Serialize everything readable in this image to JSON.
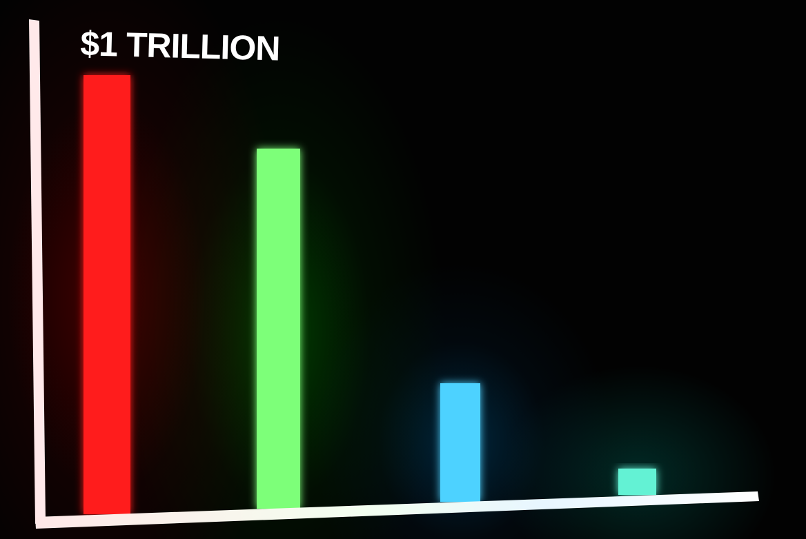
{
  "chart_data": {
    "type": "bar",
    "title": "$1 TRILLION",
    "categories": [
      "",
      "",
      "",
      ""
    ],
    "values": [
      1.0,
      0.82,
      0.27,
      0.06
    ],
    "colors": [
      "#ff1a1a",
      "#7dff79",
      "#4dd2ff",
      "#63f2d4"
    ],
    "ylim": [
      0,
      1.0
    ],
    "grid": false,
    "legend": "none"
  }
}
